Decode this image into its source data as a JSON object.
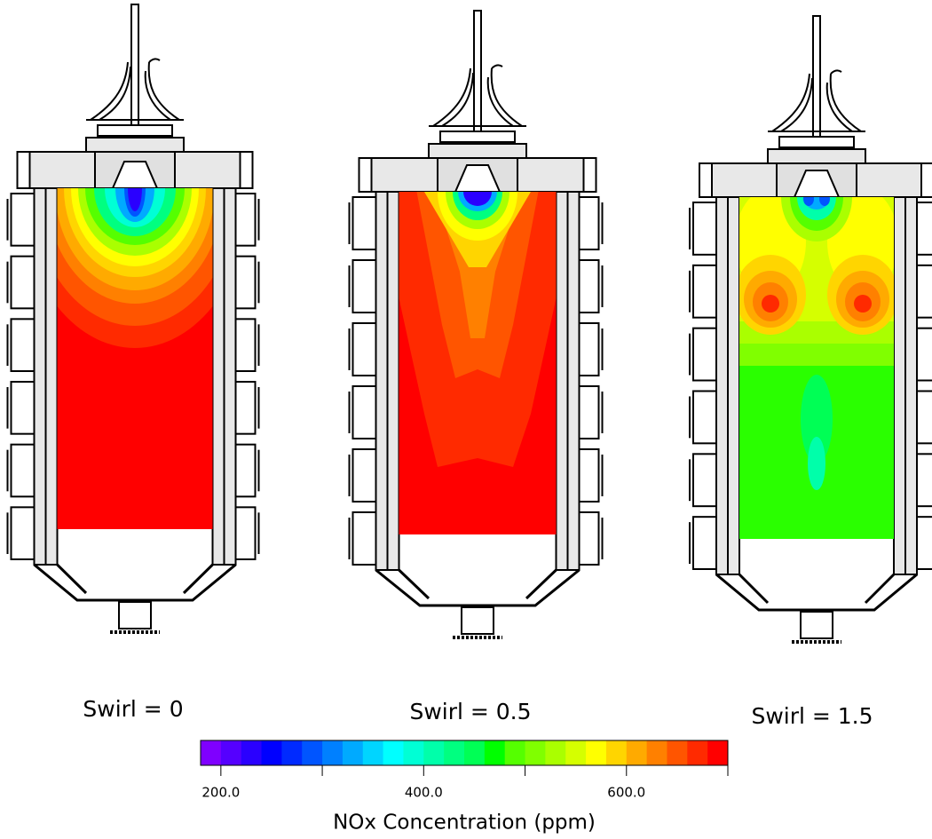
{
  "panels": [
    {
      "label": "Swirl  =  0"
    },
    {
      "label": "Swirl  =  0.5"
    },
    {
      "label": "Swirl  =  1.5"
    }
  ],
  "colorbar": {
    "label": "NOx Concentration (ppm)",
    "lim": [
      180,
      700
    ],
    "ticks": [
      {
        "value": 200,
        "label": "200.0"
      },
      {
        "value": 400,
        "label": "400.0"
      },
      {
        "value": 600,
        "label": "600.0"
      }
    ],
    "minor_ticks": [
      300,
      500,
      700
    ],
    "colors": [
      "#7f00ff",
      "#5500ff",
      "#2a00ff",
      "#0000ff",
      "#002aff",
      "#0055ff",
      "#0080ff",
      "#00aaff",
      "#00d5ff",
      "#00ffff",
      "#00ffd5",
      "#00ffaa",
      "#00ff80",
      "#00ff55",
      "#00ff00",
      "#55ff00",
      "#80ff00",
      "#aaff00",
      "#d5ff00",
      "#ffff00",
      "#ffd500",
      "#ffaa00",
      "#ff8000",
      "#ff5500",
      "#ff2a00",
      "#ff0000"
    ]
  }
}
